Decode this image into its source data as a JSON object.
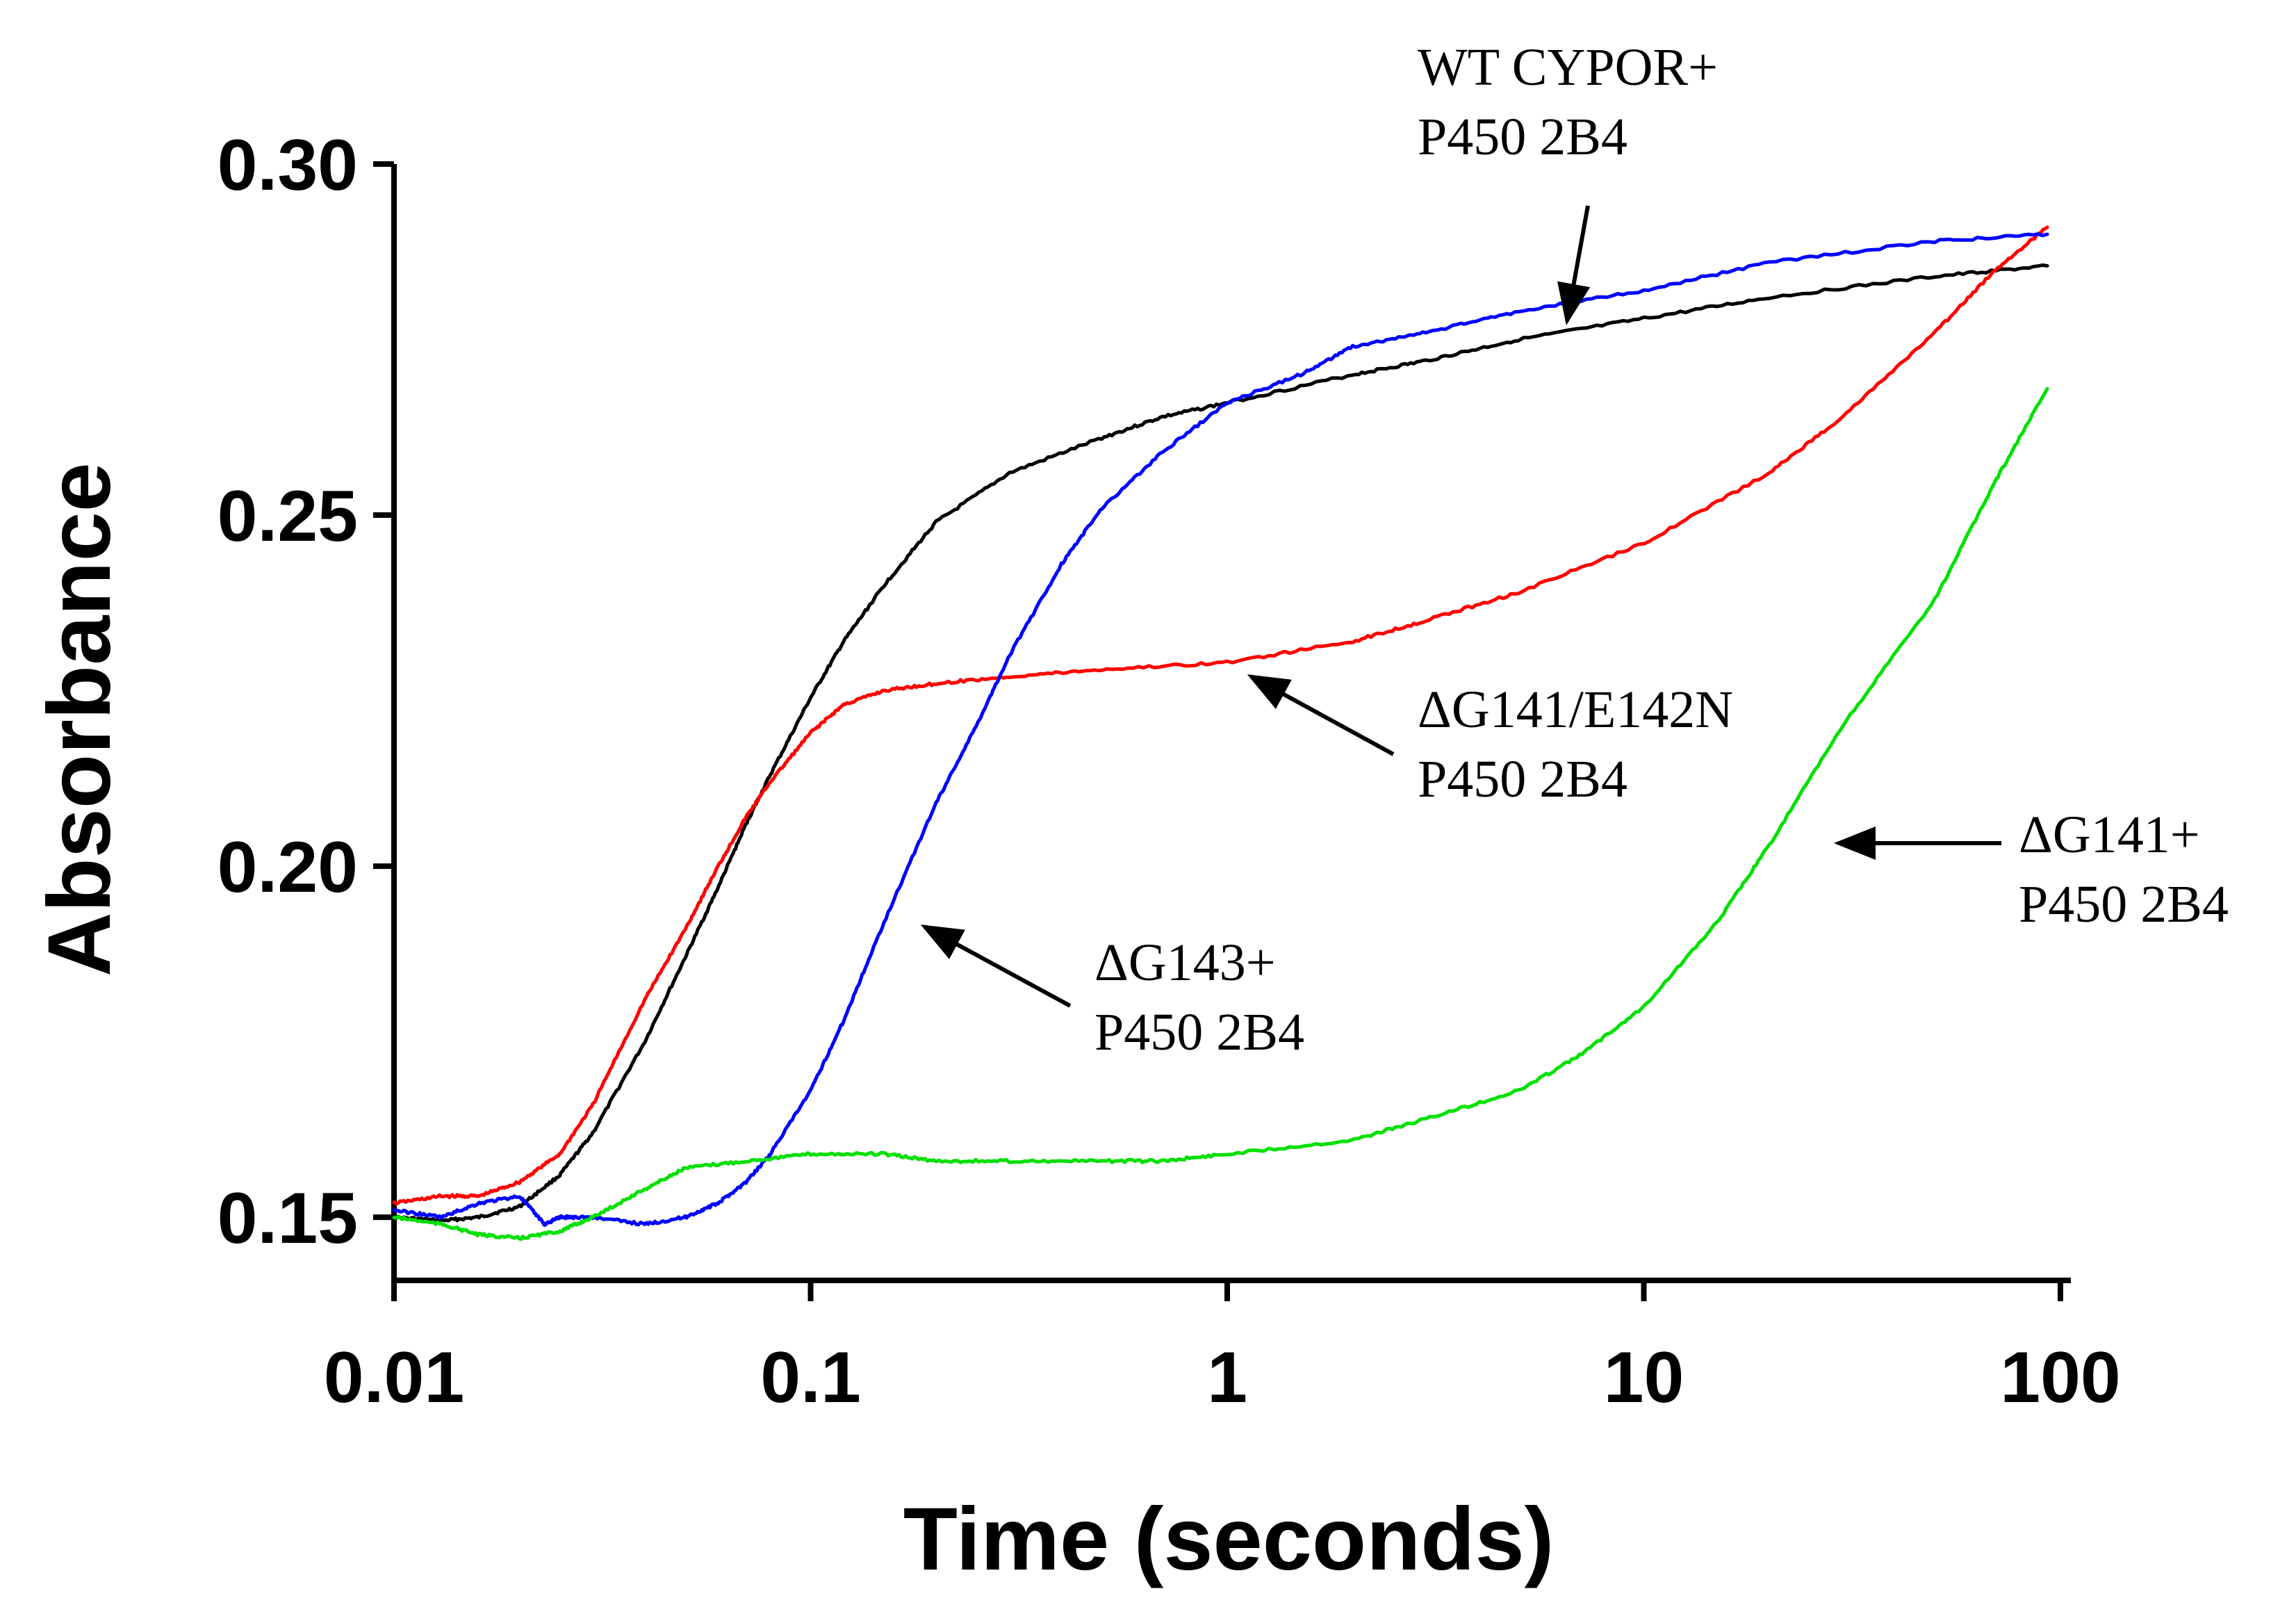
{
  "chart_data": {
    "type": "line",
    "title": "",
    "xlabel": "Time (seconds)",
    "ylabel": "Absorbance",
    "xscale": "log",
    "xlim": [
      0.01,
      100
    ],
    "ylim": [
      0.141,
      0.3
    ],
    "x_ticks": [
      0.01,
      0.1,
      1,
      10,
      100
    ],
    "x_tick_labels": [
      "0.01",
      "0.1",
      "1",
      "10",
      "100"
    ],
    "y_ticks": [
      0.15,
      0.2,
      0.25,
      0.3
    ],
    "y_tick_labels": [
      "0.15",
      "0.20",
      "0.25",
      "0.30"
    ],
    "grid": false,
    "series": [
      {
        "name": "WT CYPOR+ P450 2B4",
        "color": "#000000",
        "x": [
          0.01,
          0.013,
          0.016,
          0.02,
          0.025,
          0.03,
          0.04,
          0.05,
          0.06,
          0.07,
          0.08,
          0.1,
          0.12,
          0.15,
          0.2,
          0.3,
          0.5,
          0.7,
          1,
          2,
          3,
          5,
          10,
          20,
          50,
          93
        ],
        "y": [
          0.15,
          0.1495,
          0.15,
          0.1515,
          0.156,
          0.162,
          0.175,
          0.187,
          0.197,
          0.206,
          0.213,
          0.224,
          0.232,
          0.24,
          0.249,
          0.256,
          0.261,
          0.264,
          0.266,
          0.27,
          0.272,
          0.275,
          0.278,
          0.281,
          0.284,
          0.2855
        ]
      },
      {
        "name": "ΔG141/E142N P450 2B4",
        "color": "#ff0000",
        "x": [
          0.01,
          0.013,
          0.016,
          0.02,
          0.025,
          0.03,
          0.04,
          0.05,
          0.06,
          0.07,
          0.08,
          0.1,
          0.12,
          0.15,
          0.2,
          0.3,
          0.5,
          1,
          2,
          3,
          5,
          10,
          20,
          30,
          50,
          70,
          93
        ],
        "y": [
          0.152,
          0.153,
          0.153,
          0.155,
          0.159,
          0.166,
          0.181,
          0.191,
          0.2,
          0.207,
          0.212,
          0.219,
          0.223,
          0.225,
          0.226,
          0.227,
          0.228,
          0.229,
          0.232,
          0.235,
          0.239,
          0.246,
          0.256,
          0.264,
          0.276,
          0.285,
          0.291
        ]
      },
      {
        "name": "ΔG143+ P450 2B4",
        "color": "#0000ff",
        "x": [
          0.01,
          0.013,
          0.016,
          0.02,
          0.023,
          0.025,
          0.03,
          0.04,
          0.05,
          0.06,
          0.07,
          0.08,
          0.1,
          0.12,
          0.15,
          0.2,
          0.25,
          0.3,
          0.4,
          0.5,
          0.7,
          1,
          1.5,
          2,
          3,
          5,
          10,
          20,
          50,
          93
        ],
        "y": [
          0.151,
          0.15,
          0.152,
          0.153,
          0.149,
          0.15,
          0.15,
          0.149,
          0.15,
          0.152,
          0.155,
          0.159,
          0.168,
          0.178,
          0.192,
          0.209,
          0.22,
          0.23,
          0.243,
          0.251,
          0.259,
          0.266,
          0.27,
          0.274,
          0.276,
          0.279,
          0.282,
          0.286,
          0.289,
          0.29
        ]
      },
      {
        "name": "ΔG141+ P450 2B4",
        "color": "#00e000",
        "x": [
          0.01,
          0.013,
          0.016,
          0.02,
          0.025,
          0.03,
          0.04,
          0.05,
          0.07,
          0.1,
          0.15,
          0.2,
          0.3,
          0.5,
          0.7,
          1,
          2,
          3,
          5,
          7,
          10,
          15,
          20,
          30,
          50,
          70,
          93
        ],
        "y": [
          0.15,
          0.149,
          0.1475,
          0.147,
          0.148,
          0.15,
          0.154,
          0.157,
          0.158,
          0.159,
          0.159,
          0.158,
          0.158,
          0.158,
          0.158,
          0.159,
          0.161,
          0.164,
          0.168,
          0.173,
          0.18,
          0.192,
          0.203,
          0.22,
          0.238,
          0.255,
          0.268
        ]
      }
    ],
    "annotations": [
      {
        "lines": [
          "WT CYPOR+",
          "P450 2B4"
        ],
        "arrow_to": {
          "x": 6.0,
          "y": 0.2765
        }
      },
      {
        "lines": [
          "ΔG141/E142N",
          "P450 2B4"
        ],
        "arrow_to": {
          "x": 1.2,
          "y": 0.2285
        }
      },
      {
        "lines": [
          "ΔG143+",
          "P450 2B4"
        ],
        "arrow_to": {
          "x": 0.17,
          "y": 0.1925
        }
      },
      {
        "lines": [
          "ΔG141+",
          "P450 2B4"
        ],
        "arrow_to": {
          "x": 25,
          "y": 0.2085
        }
      }
    ]
  }
}
